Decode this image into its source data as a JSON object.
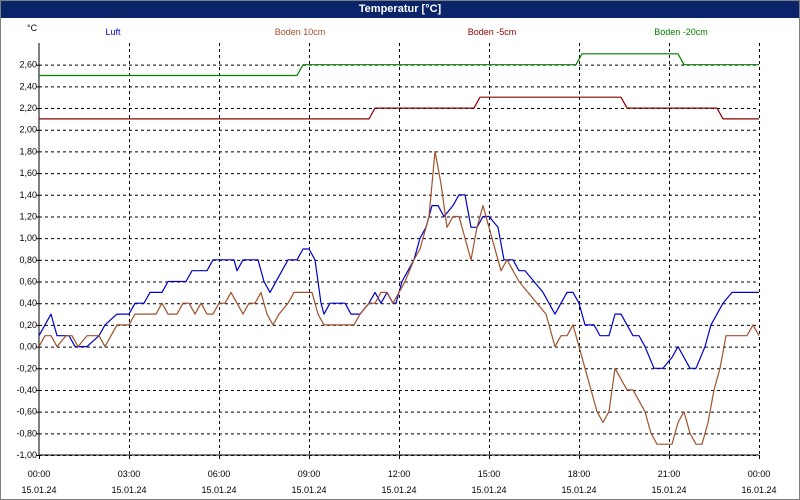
{
  "window": {
    "title": "Temperatur [°C]"
  },
  "chart_data": {
    "type": "line",
    "title": "Temperatur [°C]",
    "ylabel": "°C",
    "ylim": [
      -1.0,
      2.8
    ],
    "y_ticks": [
      "-1,00",
      "-0,80",
      "-0,60",
      "-0,40",
      "-0,20",
      "0,00",
      "0,20",
      "0,40",
      "0,60",
      "0,80",
      "1,00",
      "1,20",
      "1,40",
      "1,60",
      "1,80",
      "2,00",
      "2,20",
      "2,40",
      "2,60"
    ],
    "y_tick_values": [
      -1.0,
      -0.8,
      -0.6,
      -0.4,
      -0.2,
      0.0,
      0.2,
      0.4,
      0.6,
      0.8,
      1.0,
      1.2,
      1.4,
      1.6,
      1.8,
      2.0,
      2.2,
      2.4,
      2.6
    ],
    "x_range_hours": [
      0,
      24
    ],
    "x_ticks": [
      {
        "h": 0,
        "time": "00:00",
        "date": "15.01.24"
      },
      {
        "h": 3,
        "time": "03:00",
        "date": "15.01.24"
      },
      {
        "h": 6,
        "time": "06:00",
        "date": "15.01.24"
      },
      {
        "h": 9,
        "time": "09:00",
        "date": "15.01.24"
      },
      {
        "h": 12,
        "time": "12:00",
        "date": "15.01.24"
      },
      {
        "h": 15,
        "time": "15:00",
        "date": "15.01.24"
      },
      {
        "h": 18,
        "time": "18:00",
        "date": "15.01.24"
      },
      {
        "h": 21,
        "time": "21:00",
        "date": "15.01.24"
      },
      {
        "h": 24,
        "time": "00:00",
        "date": "16.01.24"
      }
    ],
    "grid": true,
    "legend_placement": "top",
    "series": [
      {
        "name": "Luft",
        "color": "#0000cc",
        "points": [
          [
            0,
            0.1
          ],
          [
            0.2,
            0.2
          ],
          [
            0.4,
            0.3
          ],
          [
            0.6,
            0.1
          ],
          [
            1.0,
            0.1
          ],
          [
            1.2,
            0.0
          ],
          [
            1.6,
            0.0
          ],
          [
            2.0,
            0.1
          ],
          [
            2.2,
            0.2
          ],
          [
            2.6,
            0.3
          ],
          [
            3.0,
            0.3
          ],
          [
            3.2,
            0.4
          ],
          [
            3.5,
            0.4
          ],
          [
            3.7,
            0.5
          ],
          [
            4.1,
            0.5
          ],
          [
            4.3,
            0.6
          ],
          [
            4.9,
            0.6
          ],
          [
            5.1,
            0.7
          ],
          [
            5.6,
            0.7
          ],
          [
            5.8,
            0.8
          ],
          [
            6.5,
            0.8
          ],
          [
            6.6,
            0.7
          ],
          [
            6.8,
            0.8
          ],
          [
            7.3,
            0.8
          ],
          [
            7.5,
            0.6
          ],
          [
            7.7,
            0.5
          ],
          [
            8.1,
            0.7
          ],
          [
            8.3,
            0.8
          ],
          [
            8.6,
            0.8
          ],
          [
            8.8,
            0.9
          ],
          [
            9.0,
            0.9
          ],
          [
            9.2,
            0.8
          ],
          [
            9.4,
            0.4
          ],
          [
            9.5,
            0.3
          ],
          [
            9.7,
            0.4
          ],
          [
            10.2,
            0.4
          ],
          [
            10.4,
            0.3
          ],
          [
            10.7,
            0.3
          ],
          [
            11.0,
            0.4
          ],
          [
            11.2,
            0.5
          ],
          [
            11.4,
            0.4
          ],
          [
            11.6,
            0.5
          ],
          [
            11.8,
            0.4
          ],
          [
            11.9,
            0.4
          ],
          [
            12.1,
            0.6
          ],
          [
            12.3,
            0.7
          ],
          [
            12.5,
            0.8
          ],
          [
            12.7,
            1.0
          ],
          [
            12.9,
            1.1
          ],
          [
            13.1,
            1.3
          ],
          [
            13.3,
            1.3
          ],
          [
            13.5,
            1.2
          ],
          [
            13.8,
            1.3
          ],
          [
            14.0,
            1.4
          ],
          [
            14.2,
            1.4
          ],
          [
            14.4,
            1.1
          ],
          [
            14.6,
            1.1
          ],
          [
            14.8,
            1.2
          ],
          [
            15.0,
            1.2
          ],
          [
            15.3,
            1.1
          ],
          [
            15.5,
            0.8
          ],
          [
            15.8,
            0.8
          ],
          [
            16.0,
            0.7
          ],
          [
            16.2,
            0.7
          ],
          [
            16.5,
            0.6
          ],
          [
            16.8,
            0.5
          ],
          [
            17.0,
            0.4
          ],
          [
            17.2,
            0.3
          ],
          [
            17.4,
            0.4
          ],
          [
            17.6,
            0.5
          ],
          [
            17.8,
            0.5
          ],
          [
            18.0,
            0.4
          ],
          [
            18.2,
            0.2
          ],
          [
            18.5,
            0.2
          ],
          [
            18.7,
            0.1
          ],
          [
            19.0,
            0.1
          ],
          [
            19.2,
            0.3
          ],
          [
            19.4,
            0.3
          ],
          [
            19.6,
            0.2
          ],
          [
            19.8,
            0.1
          ],
          [
            20.0,
            0.1
          ],
          [
            20.2,
            0.0
          ],
          [
            20.5,
            -0.2
          ],
          [
            20.8,
            -0.2
          ],
          [
            21.1,
            -0.1
          ],
          [
            21.3,
            0.0
          ],
          [
            21.5,
            -0.1
          ],
          [
            21.7,
            -0.2
          ],
          [
            21.9,
            -0.2
          ],
          [
            22.2,
            0.0
          ],
          [
            22.4,
            0.2
          ],
          [
            22.6,
            0.3
          ],
          [
            22.8,
            0.4
          ],
          [
            23.1,
            0.5
          ],
          [
            23.4,
            0.5
          ],
          [
            24.0,
            0.5
          ]
        ]
      },
      {
        "name": "Boden 10cm",
        "color": "#a0522d",
        "points": [
          [
            0,
            0.0
          ],
          [
            0.2,
            0.1
          ],
          [
            0.4,
            0.1
          ],
          [
            0.6,
            0.0
          ],
          [
            0.9,
            0.1
          ],
          [
            1.1,
            0.1
          ],
          [
            1.3,
            0.0
          ],
          [
            1.6,
            0.1
          ],
          [
            2.0,
            0.1
          ],
          [
            2.2,
            0.0
          ],
          [
            2.4,
            0.1
          ],
          [
            2.6,
            0.2
          ],
          [
            3.0,
            0.2
          ],
          [
            3.2,
            0.3
          ],
          [
            3.9,
            0.3
          ],
          [
            4.1,
            0.4
          ],
          [
            4.3,
            0.3
          ],
          [
            4.6,
            0.3
          ],
          [
            4.8,
            0.4
          ],
          [
            5.0,
            0.4
          ],
          [
            5.2,
            0.3
          ],
          [
            5.4,
            0.4
          ],
          [
            5.6,
            0.3
          ],
          [
            5.8,
            0.3
          ],
          [
            6.0,
            0.4
          ],
          [
            6.2,
            0.4
          ],
          [
            6.4,
            0.5
          ],
          [
            6.6,
            0.4
          ],
          [
            6.8,
            0.3
          ],
          [
            7.0,
            0.4
          ],
          [
            7.2,
            0.4
          ],
          [
            7.4,
            0.5
          ],
          [
            7.6,
            0.3
          ],
          [
            7.8,
            0.2
          ],
          [
            8.0,
            0.3
          ],
          [
            8.3,
            0.4
          ],
          [
            8.5,
            0.5
          ],
          [
            9.1,
            0.5
          ],
          [
            9.3,
            0.3
          ],
          [
            9.5,
            0.2
          ],
          [
            10.5,
            0.2
          ],
          [
            10.7,
            0.3
          ],
          [
            11.0,
            0.4
          ],
          [
            11.2,
            0.4
          ],
          [
            11.4,
            0.5
          ],
          [
            11.6,
            0.5
          ],
          [
            11.8,
            0.4
          ],
          [
            12.0,
            0.5
          ],
          [
            12.2,
            0.6
          ],
          [
            12.5,
            0.8
          ],
          [
            12.7,
            0.9
          ],
          [
            13.0,
            1.2
          ],
          [
            13.1,
            1.5
          ],
          [
            13.2,
            1.8
          ],
          [
            13.4,
            1.5
          ],
          [
            13.6,
            1.1
          ],
          [
            13.8,
            1.2
          ],
          [
            14.0,
            1.2
          ],
          [
            14.2,
            1.0
          ],
          [
            14.4,
            0.8
          ],
          [
            14.6,
            1.1
          ],
          [
            14.8,
            1.3
          ],
          [
            15.0,
            1.1
          ],
          [
            15.2,
            0.9
          ],
          [
            15.4,
            0.7
          ],
          [
            15.6,
            0.8
          ],
          [
            15.8,
            0.7
          ],
          [
            16.0,
            0.6
          ],
          [
            16.3,
            0.5
          ],
          [
            16.6,
            0.4
          ],
          [
            16.9,
            0.3
          ],
          [
            17.2,
            0.0
          ],
          [
            17.4,
            0.1
          ],
          [
            17.6,
            0.1
          ],
          [
            17.8,
            0.2
          ],
          [
            18.0,
            0.0
          ],
          [
            18.2,
            -0.2
          ],
          [
            18.4,
            -0.4
          ],
          [
            18.6,
            -0.6
          ],
          [
            18.8,
            -0.7
          ],
          [
            19.0,
            -0.6
          ],
          [
            19.2,
            -0.2
          ],
          [
            19.4,
            -0.3
          ],
          [
            19.6,
            -0.4
          ],
          [
            19.8,
            -0.4
          ],
          [
            20.0,
            -0.5
          ],
          [
            20.2,
            -0.6
          ],
          [
            20.4,
            -0.8
          ],
          [
            20.6,
            -0.9
          ],
          [
            21.1,
            -0.9
          ],
          [
            21.3,
            -0.7
          ],
          [
            21.5,
            -0.6
          ],
          [
            21.7,
            -0.8
          ],
          [
            21.9,
            -0.9
          ],
          [
            22.1,
            -0.9
          ],
          [
            22.3,
            -0.7
          ],
          [
            22.5,
            -0.4
          ],
          [
            22.7,
            -0.2
          ],
          [
            22.9,
            0.1
          ],
          [
            23.1,
            0.1
          ],
          [
            23.6,
            0.1
          ],
          [
            23.8,
            0.2
          ],
          [
            24.0,
            0.1
          ]
        ]
      },
      {
        "name": "Boden -5cm",
        "color": "#8b0000",
        "points": [
          [
            0,
            2.1
          ],
          [
            11.0,
            2.1
          ],
          [
            11.2,
            2.2
          ],
          [
            14.5,
            2.2
          ],
          [
            14.7,
            2.3
          ],
          [
            19.4,
            2.3
          ],
          [
            19.6,
            2.2
          ],
          [
            22.6,
            2.2
          ],
          [
            22.8,
            2.1
          ],
          [
            24.0,
            2.1
          ]
        ]
      },
      {
        "name": "Boden -20cm",
        "color": "#008000",
        "points": [
          [
            0,
            2.5
          ],
          [
            8.6,
            2.5
          ],
          [
            8.8,
            2.6
          ],
          [
            17.9,
            2.6
          ],
          [
            18.1,
            2.7
          ],
          [
            21.3,
            2.7
          ],
          [
            21.5,
            2.6
          ],
          [
            24.0,
            2.6
          ]
        ]
      }
    ]
  }
}
